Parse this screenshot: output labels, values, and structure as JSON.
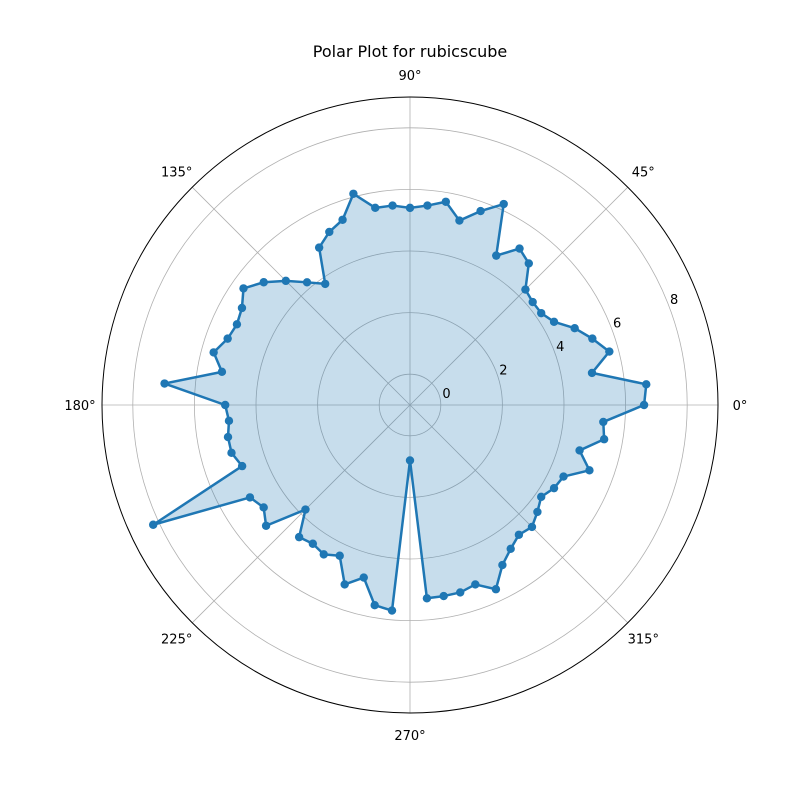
{
  "chart_data": {
    "type": "polar-line",
    "title": "Polar Plot for rubicscube",
    "angle_unit": "degrees",
    "angle_tick_labels": [
      "0°",
      "45°",
      "90°",
      "135°",
      "180°",
      "225°",
      "270°",
      "315°"
    ],
    "angle_ticks": [
      0,
      45,
      90,
      135,
      180,
      225,
      270,
      315
    ],
    "radial_tick_labels": [
      "0",
      "2",
      "4",
      "6",
      "8"
    ],
    "radial_ticks": [
      0,
      2,
      4,
      6,
      8
    ],
    "rlim": [
      -1,
      9
    ],
    "grid": true,
    "fill": true,
    "markers": true,
    "series": [
      {
        "theta": [
          0,
          5,
          10,
          15,
          20,
          25,
          30,
          35,
          40,
          45,
          50,
          55,
          60,
          65,
          70,
          75,
          80,
          85,
          90,
          95,
          100,
          105,
          110,
          115,
          120,
          125,
          130,
          135,
          140,
          145,
          150,
          155,
          160,
          165,
          170,
          175,
          180,
          185,
          190,
          195,
          200,
          205,
          210,
          215,
          220,
          225,
          230,
          235,
          240,
          245,
          250,
          255,
          260,
          265,
          270,
          275,
          280,
          285,
          290,
          295,
          300,
          305,
          310,
          315,
          320,
          325,
          330,
          335,
          340,
          345,
          350,
          355
        ],
        "r": [
          6.6,
          6.7,
          5.0,
          5.7,
          5.3,
          4.9,
          4.4,
          4.2,
          4.2,
          4.3,
          5.0,
          5.2,
          4.6,
          6.2,
          5.7,
          5.2,
          5.7,
          5.5,
          5.4,
          5.5,
          5.5,
          6.1,
          5.4,
          5.2,
          4.9,
          3.8,
          4.2,
          4.7,
          5.2,
          5.6,
          5.3,
          5.2,
          5.3,
          5.6,
          5.2,
          7.0,
          5.0,
          4.9,
          5.0,
          5.0,
          4.8,
          8.2,
          5.0,
          4.8,
          5.1,
          3.8,
          4.6,
          4.5,
          4.6,
          4.4,
          5.2,
          4.8,
          5.6,
          5.7,
          0.8,
          5.3,
          5.3,
          5.3,
          5.2,
          5.6,
          5.0,
          4.7,
          4.5,
          4.6,
          4.4,
          4.2,
          4.4,
          4.5,
          5.2,
          4.7,
          5.4,
          5.3
        ]
      }
    ],
    "colors": {
      "line": "#1f77b4",
      "fill": "#1f77b4",
      "grid": "#b0b0b0",
      "spine": "#000000",
      "text": "#000000"
    }
  }
}
